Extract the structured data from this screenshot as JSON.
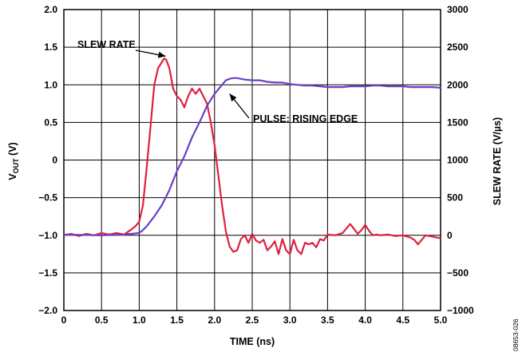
{
  "chart_data": {
    "type": "line",
    "xlabel": "TIME (ns)",
    "ylabel_left_main": "V",
    "ylabel_left_sub": "OUT",
    "ylabel_left_unit": " (V)",
    "ylabel_right": "SLEW RATE (V/µs)",
    "xlim": [
      0,
      5
    ],
    "ylim_left": [
      -2,
      2
    ],
    "ylim_right": [
      -1000,
      3000
    ],
    "x_ticks": [
      0,
      0.5,
      1,
      1.5,
      2,
      2.5,
      3,
      3.5,
      4,
      4.5,
      5
    ],
    "x_tick_labels": [
      "0",
      "0.5",
      "1.0",
      "1.5",
      "2.0",
      "2.5",
      "3.0",
      "3.5",
      "4.0",
      "4.5",
      "5.0"
    ],
    "y_left_ticks": [
      -2,
      -1.5,
      -1,
      -0.5,
      0,
      0.5,
      1,
      1.5,
      2
    ],
    "y_left_tick_labels": [
      "−2.0",
      "−1.5",
      "−1.0",
      "−0.5",
      "0",
      "0.5",
      "1.0",
      "1.5",
      "2.0"
    ],
    "y_right_ticks": [
      -1000,
      -500,
      0,
      500,
      1000,
      1500,
      2000,
      2500,
      3000
    ],
    "y_right_tick_labels": [
      "−1000",
      "−500",
      "0",
      "500",
      "1000",
      "1500",
      "2000",
      "2500",
      "3000"
    ],
    "grid": true,
    "series": [
      {
        "name": "SLEW RATE",
        "axis": "right",
        "color": "#e0203f",
        "x": [
          0,
          0.1,
          0.2,
          0.3,
          0.4,
          0.5,
          0.6,
          0.7,
          0.8,
          0.9,
          0.95,
          1.0,
          1.05,
          1.1,
          1.15,
          1.2,
          1.25,
          1.3,
          1.33,
          1.36,
          1.4,
          1.45,
          1.5,
          1.55,
          1.6,
          1.65,
          1.7,
          1.75,
          1.8,
          1.85,
          1.9,
          1.95,
          2.0,
          2.05,
          2.1,
          2.15,
          2.2,
          2.25,
          2.3,
          2.35,
          2.4,
          2.45,
          2.5,
          2.55,
          2.6,
          2.65,
          2.7,
          2.75,
          2.8,
          2.85,
          2.9,
          2.95,
          3.0,
          3.05,
          3.1,
          3.15,
          3.2,
          3.25,
          3.3,
          3.35,
          3.4,
          3.45,
          3.5,
          3.6,
          3.7,
          3.8,
          3.9,
          3.95,
          4.0,
          4.05,
          4.1,
          4.15,
          4.2,
          4.3,
          4.4,
          4.5,
          4.6,
          4.65,
          4.7,
          4.8,
          4.9,
          5.0
        ],
        "values": [
          0,
          20,
          -10,
          20,
          0,
          30,
          10,
          30,
          10,
          80,
          120,
          180,
          400,
          900,
          1450,
          2000,
          2220,
          2300,
          2350,
          2330,
          2220,
          1950,
          1850,
          1800,
          1700,
          1850,
          1950,
          1880,
          1950,
          1850,
          1750,
          1500,
          1200,
          800,
          400,
          50,
          -150,
          -220,
          -200,
          -50,
          0,
          -100,
          20,
          -70,
          -100,
          -60,
          -200,
          -150,
          -80,
          -250,
          -50,
          -200,
          -250,
          -60,
          -200,
          -250,
          -100,
          -120,
          -100,
          -160,
          -50,
          -70,
          10,
          0,
          30,
          150,
          20,
          70,
          140,
          60,
          0,
          10,
          0,
          10,
          -10,
          0,
          -30,
          -60,
          -120,
          0,
          -20,
          -40
        ]
      },
      {
        "name": "PULSE: RISING EDGE",
        "axis": "left",
        "color": "#6b3fc4",
        "x": [
          0,
          0.5,
          0.8,
          0.9,
          1.0,
          1.05,
          1.1,
          1.2,
          1.3,
          1.4,
          1.5,
          1.6,
          1.7,
          1.8,
          1.9,
          2.0,
          2.1,
          2.15,
          2.2,
          2.25,
          2.3,
          2.4,
          2.5,
          2.6,
          2.7,
          2.8,
          2.9,
          3.0,
          3.1,
          3.2,
          3.3,
          3.4,
          3.5,
          3.6,
          3.7,
          3.8,
          3.9,
          4.0,
          4.1,
          4.2,
          4.3,
          4.4,
          4.5,
          4.6,
          4.7,
          4.8,
          4.9,
          5.0
        ],
        "values": [
          -0.99,
          -1.0,
          -0.99,
          -0.98,
          -0.97,
          -0.93,
          -0.88,
          -0.75,
          -0.6,
          -0.4,
          -0.15,
          0.05,
          0.3,
          0.5,
          0.72,
          0.88,
          1.0,
          1.06,
          1.08,
          1.09,
          1.09,
          1.07,
          1.06,
          1.06,
          1.04,
          1.03,
          1.03,
          1.01,
          1.0,
          0.99,
          0.99,
          0.98,
          0.97,
          0.97,
          0.97,
          0.98,
          0.98,
          0.98,
          0.99,
          0.99,
          0.98,
          0.98,
          0.98,
          0.97,
          0.97,
          0.97,
          0.97,
          0.96
        ]
      }
    ],
    "annotations": [
      {
        "text": "SLEW RATE",
        "series": "SLEW RATE",
        "arrow_to": [
          1.35,
          2380
        ]
      },
      {
        "text": "PULSE: RISING EDGE",
        "series": "PULSE: RISING EDGE",
        "arrow_to": [
          2.2,
          0.88
        ]
      }
    ],
    "figure_code": "08653-026"
  }
}
